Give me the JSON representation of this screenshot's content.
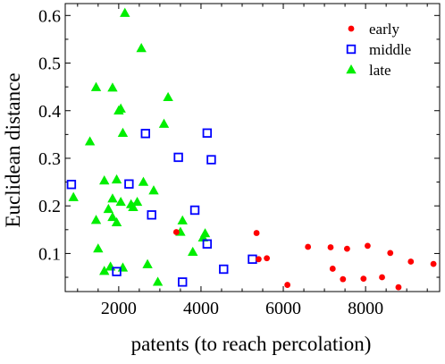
{
  "chart_data": {
    "type": "scatter",
    "xlabel": "patents (to reach percolation)",
    "ylabel": "Euclidean distance",
    "xlim": [
      700,
      9800
    ],
    "ylim": [
      0.02,
      0.625
    ],
    "xticks": [
      2000,
      4000,
      6000,
      8000
    ],
    "yticks": [
      0.1,
      0.2,
      0.3,
      0.4,
      0.5,
      0.6
    ],
    "xtick_labels": [
      "2000",
      "4000",
      "6000",
      "8000"
    ],
    "ytick_labels": [
      "0.1",
      "0.2",
      "0.3",
      "0.4",
      "0.5",
      "0.6"
    ],
    "grid": false,
    "legend_position": "top-right",
    "series": [
      {
        "name": "early",
        "marker": "filled-circle",
        "color": "#ff0000",
        "points": [
          [
            3400,
            0.145
          ],
          [
            5350,
            0.143
          ],
          [
            5400,
            0.088
          ],
          [
            5600,
            0.09
          ],
          [
            6100,
            0.034
          ],
          [
            6600,
            0.114
          ],
          [
            7150,
            0.113
          ],
          [
            7200,
            0.068
          ],
          [
            7450,
            0.046
          ],
          [
            7550,
            0.11
          ],
          [
            7950,
            0.047
          ],
          [
            8050,
            0.116
          ],
          [
            8400,
            0.05
          ],
          [
            8600,
            0.101
          ],
          [
            8800,
            0.029
          ],
          [
            9100,
            0.083
          ],
          [
            9650,
            0.078
          ]
        ]
      },
      {
        "name": "middle",
        "marker": "open-square",
        "color": "#0000ff",
        "points": [
          [
            850,
            0.245
          ],
          [
            1950,
            0.062
          ],
          [
            2250,
            0.246
          ],
          [
            2650,
            0.352
          ],
          [
            2800,
            0.181
          ],
          [
            3450,
            0.302
          ],
          [
            3550,
            0.04
          ],
          [
            3850,
            0.191
          ],
          [
            4150,
            0.353
          ],
          [
            4150,
            0.12
          ],
          [
            4250,
            0.297
          ],
          [
            4550,
            0.067
          ],
          [
            5250,
            0.088
          ]
        ]
      },
      {
        "name": "late",
        "marker": "filled-triangle",
        "color": "#00ee00",
        "points": [
          [
            900,
            0.218
          ],
          [
            1300,
            0.335
          ],
          [
            1450,
            0.449
          ],
          [
            1450,
            0.17
          ],
          [
            1500,
            0.11
          ],
          [
            1650,
            0.253
          ],
          [
            1650,
            0.063
          ],
          [
            1750,
            0.193
          ],
          [
            1800,
            0.072
          ],
          [
            1850,
            0.448
          ],
          [
            1850,
            0.215
          ],
          [
            1850,
            0.176
          ],
          [
            1950,
            0.255
          ],
          [
            1950,
            0.165
          ],
          [
            2000,
            0.4
          ],
          [
            2050,
            0.404
          ],
          [
            2050,
            0.208
          ],
          [
            2100,
            0.07
          ],
          [
            2100,
            0.353
          ],
          [
            2150,
            0.605
          ],
          [
            2300,
            0.203
          ],
          [
            2350,
            0.197
          ],
          [
            2450,
            0.208
          ],
          [
            2550,
            0.531
          ],
          [
            2600,
            0.25
          ],
          [
            2700,
            0.077
          ],
          [
            2850,
            0.232
          ],
          [
            2950,
            0.04
          ],
          [
            3100,
            0.372
          ],
          [
            3200,
            0.428
          ],
          [
            3500,
            0.145
          ],
          [
            3550,
            0.169
          ],
          [
            3800,
            0.103
          ],
          [
            4050,
            0.133
          ],
          [
            4100,
            0.142
          ]
        ]
      }
    ]
  }
}
